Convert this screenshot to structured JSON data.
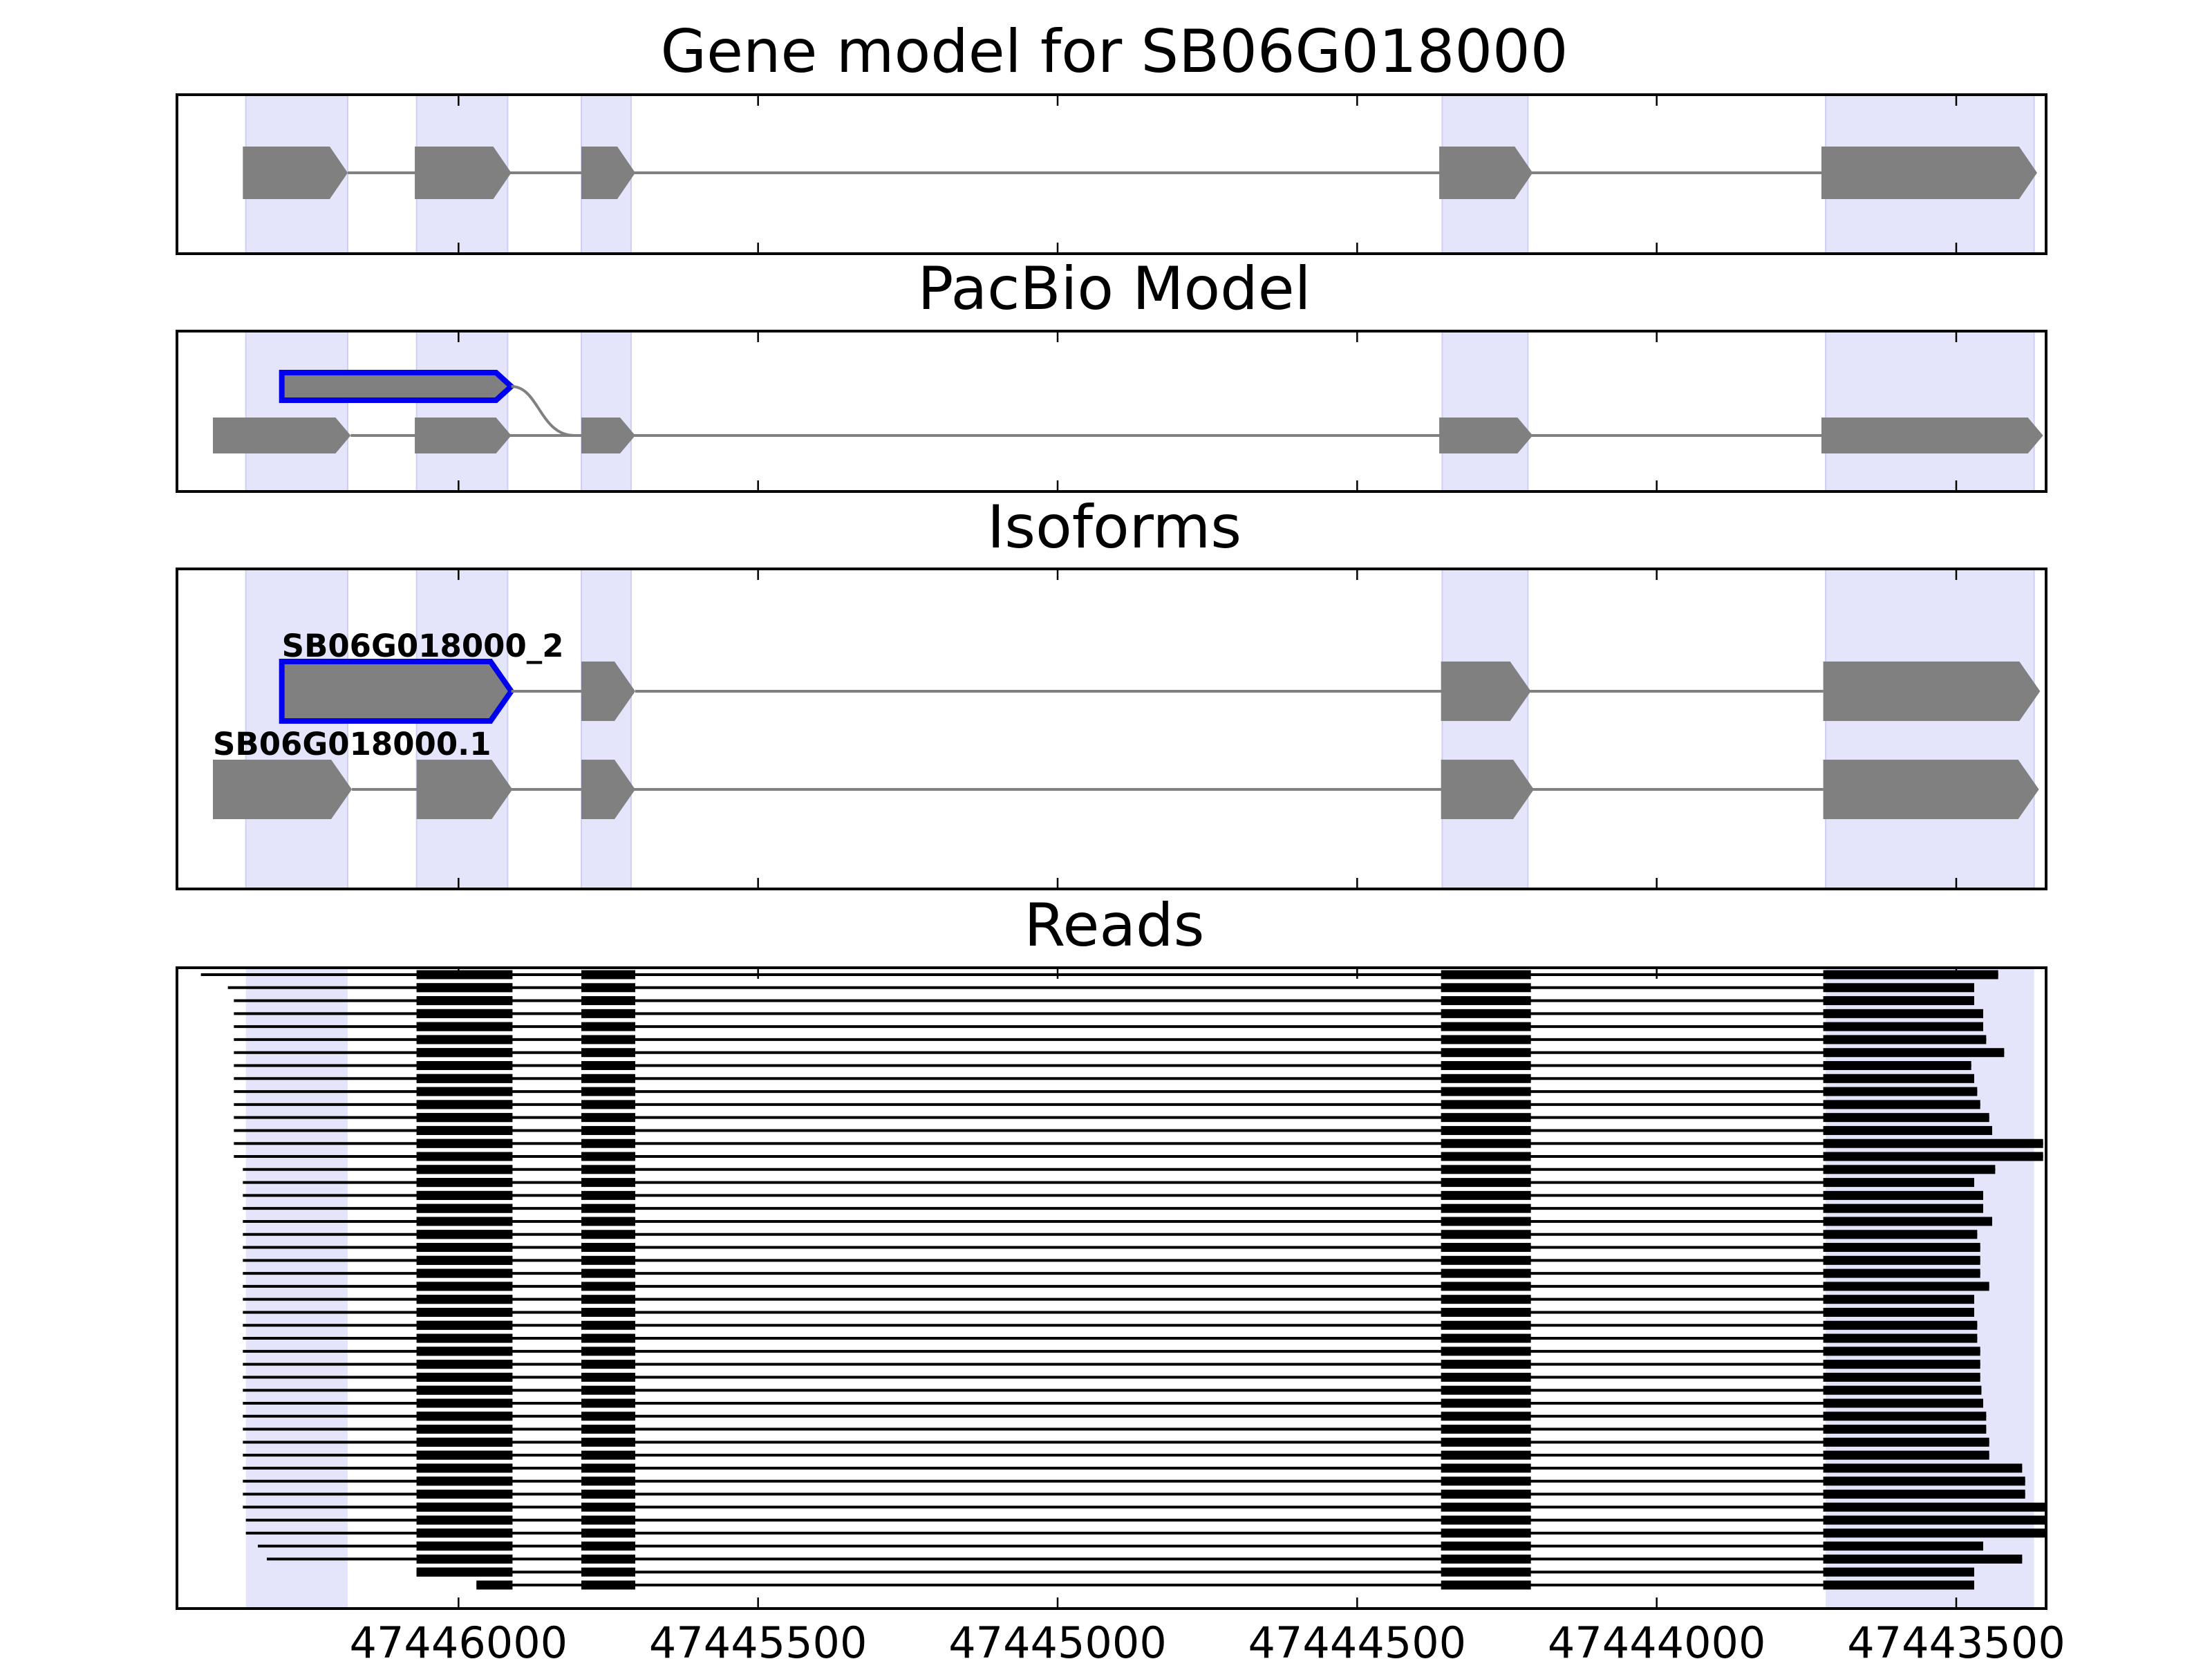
{
  "panels": {
    "gene_model": {
      "title": "Gene model for SB06G018000"
    },
    "pacbio": {
      "title": "PacBio Model"
    },
    "isoforms": {
      "title": "Isoforms"
    },
    "reads": {
      "title": "Reads"
    }
  },
  "colors": {
    "exon_fill": "#808080",
    "intron": "#808080",
    "highlight_outline": "#0000ee",
    "exon_band": "#e4e4fb",
    "read": "#000000",
    "frame": "#000000"
  },
  "axis": {
    "reversed": true,
    "tick_values": [
      47446000,
      47445500,
      47445000,
      47444500,
      47444000,
      47443500
    ],
    "tick_labels": [
      "47446000",
      "47445500",
      "47445000",
      "47444500",
      "47444000",
      "47443500"
    ]
  },
  "chart_data": {
    "type": "gene-structure",
    "exon_bands": [
      [
        47446355,
        47446185
      ],
      [
        47446070,
        47445918
      ],
      [
        47445795,
        47445712
      ],
      [
        47444358,
        47444215
      ],
      [
        47443718,
        47443370
      ]
    ],
    "gene_model": {
      "exons": [
        [
          47446360,
          47446185
        ],
        [
          47446073,
          47445912
        ],
        [
          47445795,
          47445705
        ],
        [
          47444363,
          47444207
        ],
        [
          47443725,
          47443365
        ]
      ]
    },
    "pacbio_model": {
      "highlighted_exon": [
        47446295,
        47445912
      ],
      "main_exons": [
        [
          47446410,
          47446180
        ],
        [
          47446073,
          47445912
        ],
        [
          47445795,
          47445705
        ],
        [
          47444363,
          47444207
        ],
        [
          47443725,
          47443355
        ]
      ]
    },
    "isoforms": [
      {
        "label": "SB06G018000_2",
        "highlighted": true,
        "exons": [
          [
            47446295,
            47445912
          ],
          [
            47445795,
            47445705
          ],
          [
            47444360,
            47444210
          ],
          [
            47443722,
            47443360
          ]
        ]
      },
      {
        "label": "SB06G018000.1",
        "highlighted": false,
        "exons": [
          [
            47446410,
            47446178
          ],
          [
            47446070,
            47445910
          ],
          [
            47445795,
            47445705
          ],
          [
            47444360,
            47444205
          ],
          [
            47443722,
            47443362
          ]
        ]
      }
    ],
    "reads": {
      "core_exons": [
        [
          47446180,
          47445910
        ],
        [
          47445795,
          47445705
        ],
        [
          47444360,
          47444210
        ],
        [
          47443722
        ]
      ],
      "rows": [
        [
          47446430,
          47443430
        ],
        [
          47446385,
          47443470
        ],
        [
          47446375,
          47443470
        ],
        [
          47446375,
          47443455
        ],
        [
          47446375,
          47443455
        ],
        [
          47446375,
          47443450
        ],
        [
          47446375,
          47443420
        ],
        [
          47446375,
          47443475
        ],
        [
          47446375,
          47443470
        ],
        [
          47446375,
          47443465
        ],
        [
          47446375,
          47443460
        ],
        [
          47446375,
          47443445
        ],
        [
          47446375,
          47443440
        ],
        [
          47446375,
          47443355
        ],
        [
          47446375,
          47443355
        ],
        [
          47446360,
          47443435
        ],
        [
          47446360,
          47443470
        ],
        [
          47446360,
          47443455
        ],
        [
          47446360,
          47443455
        ],
        [
          47446360,
          47443440
        ],
        [
          47446360,
          47443465
        ],
        [
          47446360,
          47443460
        ],
        [
          47446360,
          47443460
        ],
        [
          47446360,
          47443460
        ],
        [
          47446360,
          47443445
        ],
        [
          47446360,
          47443470
        ],
        [
          47446360,
          47443470
        ],
        [
          47446360,
          47443465
        ],
        [
          47446360,
          47443465
        ],
        [
          47446360,
          47443460
        ],
        [
          47446360,
          47443460
        ],
        [
          47446360,
          47443460
        ],
        [
          47446360,
          47443458
        ],
        [
          47446360,
          47443455
        ],
        [
          47446360,
          47443450
        ],
        [
          47446360,
          47443450
        ],
        [
          47446360,
          47443445
        ],
        [
          47446360,
          47443445
        ],
        [
          47446360,
          47443390
        ],
        [
          47446360,
          47443385
        ],
        [
          47446360,
          47443385
        ],
        [
          47446360,
          47443350
        ],
        [
          47446355,
          47443350
        ],
        [
          47446355,
          47443350
        ],
        [
          47446335,
          47443455
        ],
        [
          47446320,
          47443390
        ],
        [
          47446070,
          47443470
        ],
        [
          47445970,
          47443470
        ]
      ]
    }
  }
}
